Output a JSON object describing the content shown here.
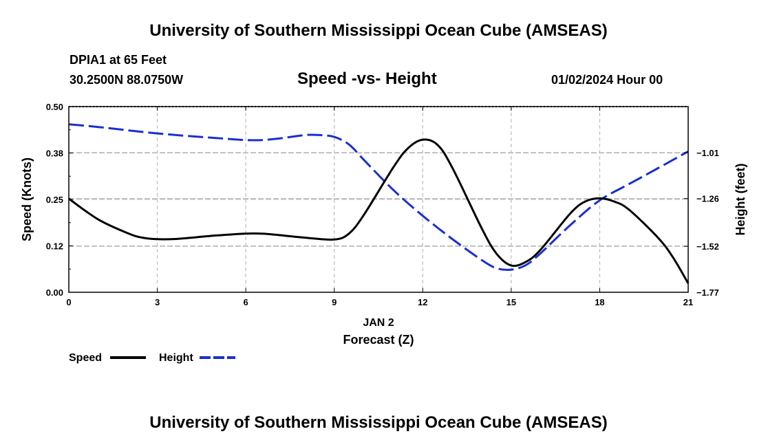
{
  "header": {
    "title": "University of Southern Mississippi Ocean Cube (AMSEAS)",
    "station": "DPIA1 at 65 Feet",
    "coordinates": "30.2500N  88.0750W",
    "subtitle": "Speed -vs- Height",
    "datetime": "01/02/2024 Hour 00"
  },
  "footer": {
    "title": "University of Southern Mississippi Ocean Cube (AMSEAS)"
  },
  "colors": {
    "speed": "#000000",
    "height": "#1a2fd0",
    "grid": "#c0c0c0"
  },
  "chart_data": {
    "type": "line",
    "title": "Speed -vs- Height",
    "xlabel": "Forecast (Z)",
    "xlabel_date": "JAN 2",
    "ylabel_left": "Speed (Knots)",
    "ylabel_right": "Height (feet)",
    "xlim": [
      0,
      21
    ],
    "ylim_left": [
      0,
      0.5
    ],
    "ylim_right": [
      -1.77,
      -0.76
    ],
    "x_ticks": [
      0,
      3,
      6,
      9,
      12,
      15,
      18,
      21
    ],
    "x_tick_labels": [
      "0",
      "3",
      "6",
      "9",
      "12",
      "15",
      "18",
      "21"
    ],
    "y_left_ticks": [
      0,
      0.125,
      0.25,
      0.375,
      0.5
    ],
    "y_left_tick_labels": [
      "0.00",
      "0.12",
      "0.25",
      "0.38",
      "0.50"
    ],
    "y_right_ticks": [
      -1.77,
      -1.52,
      -1.26,
      -1.01
    ],
    "y_right_tick_labels": [
      "−1.77",
      "−1.52",
      "−1.26",
      "−1.01"
    ],
    "grid": true,
    "legend_position": "bottom-left",
    "series": [
      {
        "name": "Speed",
        "axis": "left",
        "style": "solid",
        "x": [
          0,
          1,
          2,
          2.5,
          3,
          3.5,
          4,
          5,
          6,
          6.5,
          7,
          8,
          9,
          9.5,
          10,
          11,
          11.5,
          12,
          12.5,
          13,
          14,
          14.5,
          15,
          15.5,
          16,
          17,
          17.5,
          18,
          18.5,
          19,
          20,
          20.5,
          21
        ],
        "values": [
          0.252,
          0.196,
          0.159,
          0.147,
          0.143,
          0.143,
          0.146,
          0.153,
          0.158,
          0.158,
          0.155,
          0.147,
          0.142,
          0.158,
          0.208,
          0.336,
          0.388,
          0.411,
          0.397,
          0.336,
          0.172,
          0.104,
          0.072,
          0.082,
          0.115,
          0.212,
          0.244,
          0.253,
          0.244,
          0.222,
          0.145,
          0.092,
          0.024
        ]
      },
      {
        "name": "Height",
        "axis": "right",
        "style": "dashed",
        "x": [
          0,
          1,
          3,
          5,
          6.2,
          7,
          8,
          8.5,
          9,
          9.5,
          10,
          11,
          12,
          13,
          14,
          14.5,
          15,
          15.5,
          16,
          17,
          18,
          19,
          20,
          21
        ],
        "values": [
          -0.856,
          -0.871,
          -0.906,
          -0.931,
          -0.943,
          -0.936,
          -0.915,
          -0.915,
          -0.925,
          -0.966,
          -1.049,
          -1.213,
          -1.354,
          -1.48,
          -1.595,
          -1.639,
          -1.647,
          -1.622,
          -1.557,
          -1.405,
          -1.27,
          -1.181,
          -1.093,
          -1.004
        ]
      }
    ]
  }
}
